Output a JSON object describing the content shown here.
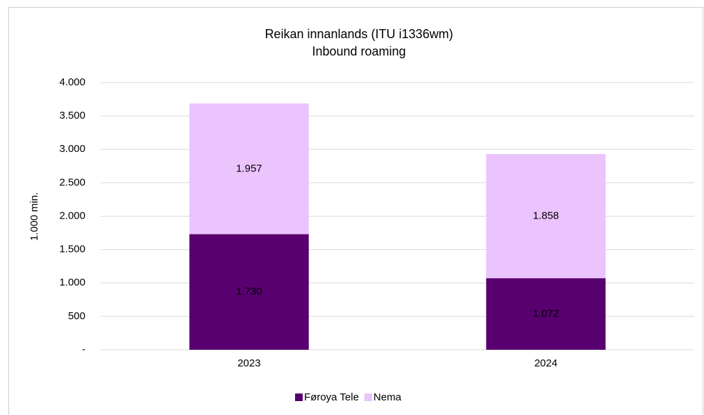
{
  "chart_data": {
    "type": "stacked_bar",
    "title": "Reikan innanlands (ITU i1336wm)",
    "subtitle": "Inbound roaming",
    "y_label": "1.000 min.",
    "categories": [
      "2023",
      "2024"
    ],
    "series": [
      {
        "name": "Føroya Tele",
        "color": "#58006f",
        "values": [
          1730,
          1072
        ],
        "value_labels": [
          "1.730",
          "1.072"
        ],
        "label_color": "#ffffff"
      },
      {
        "name": "Nema",
        "color": "#ebc3fd",
        "values": [
          1957,
          1858
        ],
        "value_labels": [
          "1.957",
          "1.858"
        ],
        "label_color": "#000000"
      }
    ],
    "ylim": [
      0,
      4000
    ],
    "yticks": [
      {
        "value": 0,
        "label": "-"
      },
      500,
      {
        "value": 1000,
        "label": "1.000"
      },
      {
        "value": 1500,
        "label": "1.500"
      },
      {
        "value": 2000,
        "label": "2.000"
      },
      {
        "value": 2500,
        "label": "2.500"
      },
      {
        "value": 3000,
        "label": "3.000"
      },
      {
        "value": 3500,
        "label": "3.500"
      },
      {
        "value": 4000,
        "label": "4.000"
      }
    ],
    "grid": true,
    "legend": "bottom"
  }
}
